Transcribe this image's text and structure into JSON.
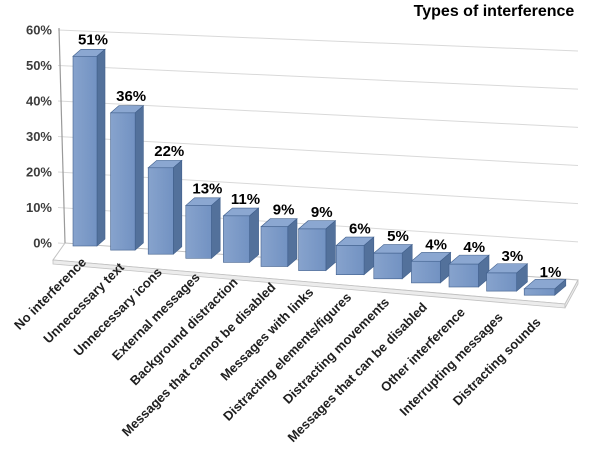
{
  "chart_data": {
    "type": "bar",
    "style": "3d-column",
    "title": "Types of interference",
    "categories": [
      "No interference",
      "Unnecessary text",
      "Unnecessary icons",
      "External messages",
      "Background distraction",
      "Messages that cannot be disabled",
      "Messages with links",
      "Distracting elements/figures",
      "Distracting movements",
      "Messages that can be disabled",
      "Other interference",
      "Interrupting messages",
      "Distracting sounds"
    ],
    "values": [
      51,
      36,
      22,
      13,
      11,
      9,
      9,
      6,
      5,
      4,
      4,
      3,
      1
    ],
    "value_labels": [
      "51%",
      "36%",
      "22%",
      "13%",
      "11%",
      "9%",
      "9%",
      "6%",
      "5%",
      "4%",
      "4%",
      "3%",
      "1%"
    ],
    "xlabel": "",
    "ylabel": "",
    "ylim": [
      0,
      60
    ],
    "y_ticks": [
      "0%",
      "10%",
      "20%",
      "30%",
      "40%",
      "50%",
      "60%"
    ],
    "grid": true,
    "legend": false,
    "colors": {
      "bar_front": "#7292c2",
      "bar_front_light": "#87a3cd",
      "bar_top": "#8ba7d1",
      "bar_side": "#53719b",
      "bar_edge": "#41608d",
      "gridline": "#d9d9d9",
      "floor_fill": "#ffffff",
      "floor_slab": "#ececec",
      "floor_edge": "#c2c2c2",
      "axis_line": "#9a9a9a",
      "background": "#ffffff"
    }
  }
}
